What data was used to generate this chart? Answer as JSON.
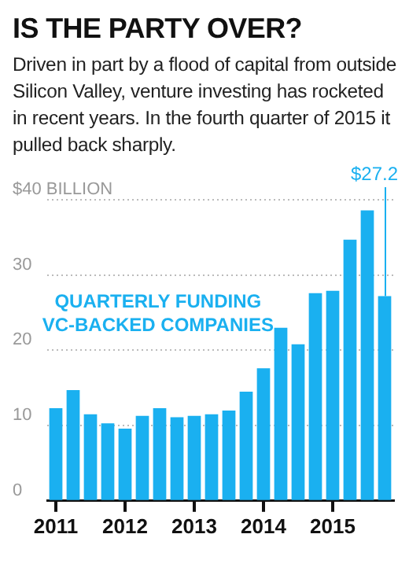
{
  "chart_data": {
    "type": "bar",
    "title": "IS THE PARTY OVER?",
    "subtitle": "Driven in part by a flood of capital from outside Silicon Valley, venture investing has rocketed in recent years. In the fourth quarter of 2015 it pulled back sharply.",
    "categories": [
      "2011",
      null,
      null,
      null,
      "2012",
      null,
      null,
      null,
      "2013",
      null,
      null,
      null,
      "2014",
      null,
      null,
      null,
      "2015",
      null,
      null,
      null
    ],
    "values": [
      12.3,
      14.7,
      11.5,
      10.3,
      9.6,
      11.3,
      12.3,
      11.1,
      11.3,
      11.5,
      12.0,
      14.5,
      17.6,
      23.0,
      20.8,
      27.6,
      27.9,
      34.7,
      38.6,
      27.2
    ],
    "value_labels": [
      null,
      null,
      null,
      null,
      null,
      null,
      null,
      null,
      null,
      null,
      null,
      null,
      null,
      null,
      null,
      null,
      null,
      null,
      null,
      "$27.2"
    ],
    "color": "#1ab0f0",
    "annotations": [
      "QUARTERLY FUNDING\nVC-BACKED COMPANIES"
    ],
    "ylim": [
      0,
      40
    ],
    "yticks": [
      0,
      10,
      20,
      30,
      {
        "value": 40,
        "label": "$40 BILLION"
      }
    ],
    "grid": "y"
  }
}
